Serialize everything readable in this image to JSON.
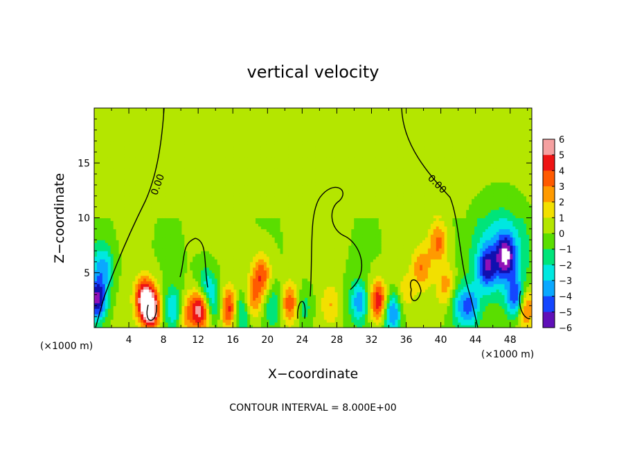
{
  "chart_data": {
    "type": "heatmap",
    "title": "vertical velocity",
    "xlabel": "X−coordinate",
    "ylabel": "Z−coordinate",
    "x_unit_left": "(×1000 m)",
    "x_unit_right": "(×1000 m)",
    "xlim": [
      0,
      50.5
    ],
    "ylim": [
      0,
      20
    ],
    "x_ticks": [
      4,
      8,
      12,
      16,
      20,
      24,
      28,
      32,
      36,
      40,
      44,
      48
    ],
    "y_ticks": [
      5,
      10,
      15
    ],
    "colorbar": {
      "levels": [
        6,
        5,
        4,
        3,
        2,
        1,
        0,
        -1,
        -2,
        -3,
        -4,
        -5,
        -6
      ],
      "labels": [
        "6",
        "5",
        "4",
        "3",
        "2",
        "1",
        "0",
        "−1",
        "−2",
        "−3",
        "−4",
        "−5",
        "−6"
      ]
    },
    "contour_label": "0.00",
    "note": "CONTOUR INTERVAL = 8.000E+00",
    "grid": false,
    "legend_position": "right",
    "features": [
      {
        "x": 0.3,
        "z": 2.5,
        "w": -5.5
      },
      {
        "x": 1.2,
        "z": 5.5,
        "w": -2.5
      },
      {
        "x": 5.8,
        "z": 2.7,
        "w": 5.5
      },
      {
        "x": 6.6,
        "z": 1.6,
        "w": 6.0
      },
      {
        "x": 9.2,
        "z": 1.8,
        "w": -3.2
      },
      {
        "x": 10.6,
        "z": 1.2,
        "w": 2.8
      },
      {
        "x": 12.3,
        "z": 1.8,
        "w": 6.0
      },
      {
        "x": 12.9,
        "z": 3.5,
        "w": -3.5
      },
      {
        "x": 14.0,
        "z": 2.0,
        "w": -2.5
      },
      {
        "x": 15.6,
        "z": 1.8,
        "w": 5.0
      },
      {
        "x": 16.9,
        "z": 1.5,
        "w": -3.5
      },
      {
        "x": 18.3,
        "z": 2.5,
        "w": 3.0
      },
      {
        "x": 19.3,
        "z": 4.8,
        "w": 3.8
      },
      {
        "x": 20.7,
        "z": 2.0,
        "w": -2.0
      },
      {
        "x": 22.6,
        "z": 2.2,
        "w": 4.0
      },
      {
        "x": 24.1,
        "z": 1.8,
        "w": -2.0
      },
      {
        "x": 27.3,
        "z": 2.2,
        "w": 1.8
      },
      {
        "x": 30.6,
        "z": 2.4,
        "w": -3.6
      },
      {
        "x": 32.8,
        "z": 2.4,
        "w": 5.2
      },
      {
        "x": 34.4,
        "z": 1.4,
        "w": -4.5
      },
      {
        "x": 35.8,
        "z": 3.2,
        "w": 1.5
      },
      {
        "x": 37.8,
        "z": 5.5,
        "w": 2.8
      },
      {
        "x": 39.7,
        "z": 7.8,
        "w": 3.2
      },
      {
        "x": 40.6,
        "z": 3.8,
        "w": 2.6
      },
      {
        "x": 42.0,
        "z": 2.0,
        "w": -2.2
      },
      {
        "x": 43.4,
        "z": 2.0,
        "w": -3.5
      },
      {
        "x": 45.3,
        "z": 5.5,
        "w": -4.2
      },
      {
        "x": 47.5,
        "z": 6.5,
        "w": -5.0
      },
      {
        "x": 48.8,
        "z": 2.6,
        "w": -6.0
      },
      {
        "x": 49.6,
        "z": 2.0,
        "w": 5.0
      }
    ]
  }
}
